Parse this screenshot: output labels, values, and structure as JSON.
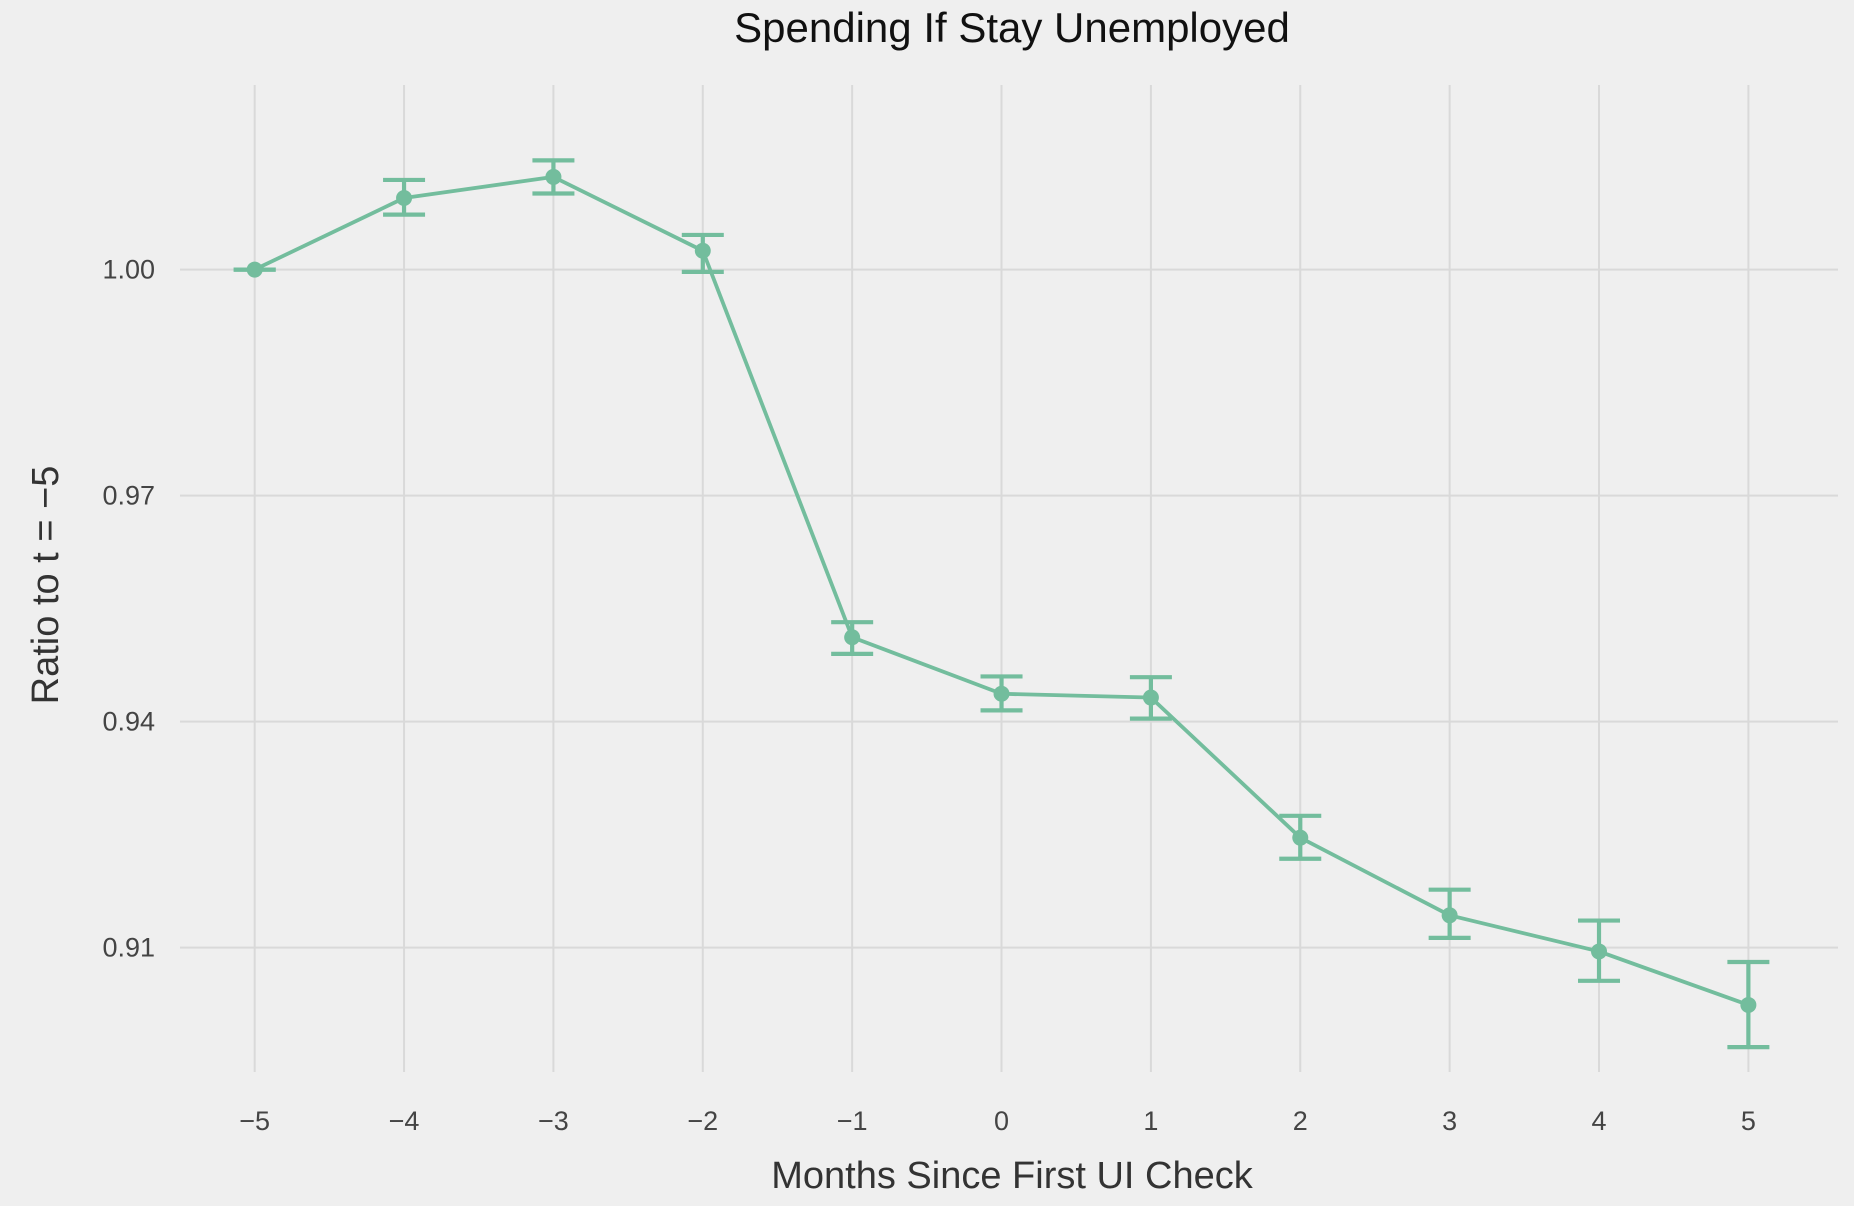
{
  "chart_data": {
    "type": "line",
    "title": "Spending If Stay Unemployed",
    "xlabel": "Months Since First UI Check",
    "ylabel": "Ratio to t = −5",
    "x": [
      -5,
      -4,
      -3,
      -2,
      -1,
      0,
      1,
      2,
      3,
      4,
      5
    ],
    "x_tick_labels": [
      "−5",
      "−4",
      "−3",
      "−2",
      "−1",
      "0",
      "1",
      "2",
      "3",
      "4",
      "5"
    ],
    "y_ticks": [
      0.91,
      0.94,
      0.97,
      1.0
    ],
    "y_tick_labels": [
      "0.91",
      "0.94",
      "0.97",
      "1.00"
    ],
    "xlim": [
      -5.5,
      5.6
    ],
    "ylim": [
      0.8935,
      1.0245
    ],
    "grid": true,
    "legend": "none",
    "series": [
      {
        "values": [
          1.0,
          1.0095,
          1.0123,
          1.0025,
          0.9512,
          0.9437,
          0.9432,
          0.9246,
          0.9143,
          0.9095,
          0.9024
        ],
        "error_low": [
          1.0,
          1.0073,
          1.0101,
          0.9997,
          0.949,
          0.9415,
          0.9404,
          0.9218,
          0.9113,
          0.9056,
          0.8968
        ],
        "error_high": [
          1.0,
          1.0119,
          1.0145,
          1.0046,
          0.9532,
          0.946,
          0.9459,
          0.9275,
          0.9177,
          0.9136,
          0.9081
        ],
        "color": "#73bd9d"
      }
    ],
    "colors": {
      "background": "#efefef",
      "grid": "#d9d9d9",
      "series": "#73bd9d"
    }
  }
}
